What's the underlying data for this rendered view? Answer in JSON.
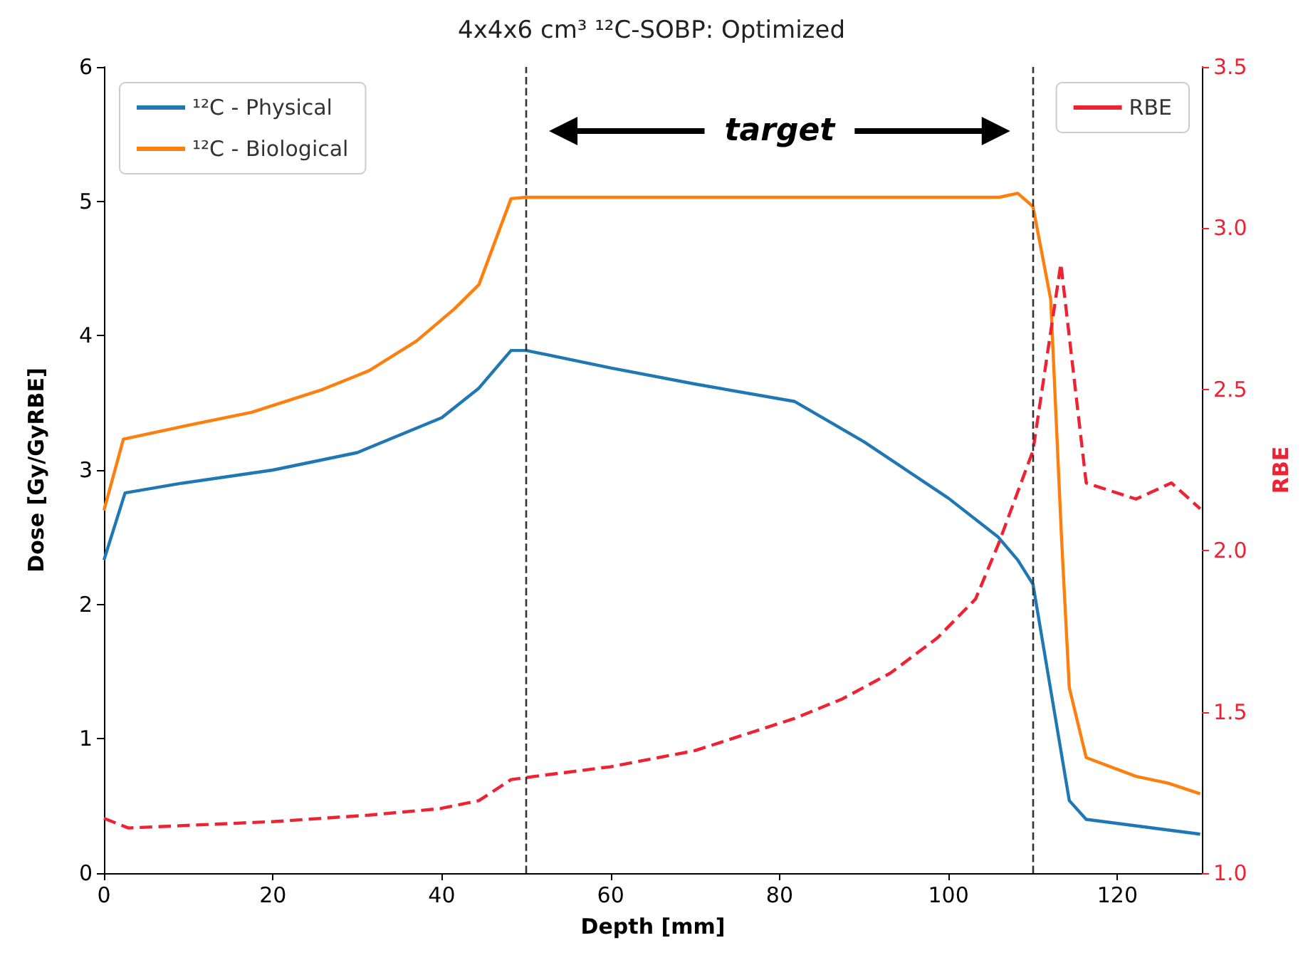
{
  "chart_data": {
    "type": "line",
    "title": "4x4x6 cm³ ¹²C-SOBP: Optimized",
    "xlabel": "Depth [mm]",
    "ylabel": "Dose [Gy/GyRBE]",
    "y2label": "RBE",
    "xlim": [
      0,
      130
    ],
    "xticks": [
      0,
      20,
      40,
      60,
      80,
      100,
      120
    ],
    "ylim": [
      0,
      6
    ],
    "yticks": [
      0,
      1,
      2,
      3,
      4,
      5,
      6
    ],
    "y2lim": [
      1,
      3.5
    ],
    "y2ticks": [
      {
        "value": 1,
        "label": "1.0"
      },
      {
        "value": 1.5,
        "label": "1.5"
      },
      {
        "value": 2,
        "label": "2.0"
      },
      {
        "value": 2.5,
        "label": "2.5"
      },
      {
        "value": 3,
        "label": "3.0"
      },
      {
        "value": 3.5,
        "label": "3.5"
      }
    ],
    "grid": false,
    "legend": "top left",
    "marker": "none",
    "ref_lines": [
      {
        "axis": "x",
        "value": 50,
        "line_style": "dashed",
        "color": "#333333"
      },
      {
        "axis": "x",
        "value": 110,
        "line_style": "dashed",
        "color": "#333333"
      }
    ],
    "annotations": [
      "target"
    ],
    "series": [
      {
        "name": "¹²C - Physical",
        "color": "#1f77b4",
        "line_style": "solid",
        "x": [
          0,
          2.5,
          9,
          20,
          30,
          40,
          44.4,
          48.2,
          50,
          60,
          70,
          81.8,
          90,
          100,
          105.9,
          108.2,
          110,
          114.3,
          116.3,
          129.8
        ],
        "values": [
          2.33,
          2.83,
          2.9,
          3.0,
          3.13,
          3.39,
          3.61,
          3.89,
          3.89,
          3.76,
          3.64,
          3.51,
          3.21,
          2.79,
          2.5,
          2.33,
          2.15,
          0.54,
          0.4,
          0.29
        ]
      },
      {
        "name": "¹²C - Biological",
        "color": "#ff7f0e",
        "line_style": "solid",
        "x": [
          0,
          2.3,
          9,
          17.5,
          25.9,
          31.4,
          37,
          41.5,
          44.4,
          48.2,
          50,
          70,
          90,
          106,
          108.2,
          110,
          112.1,
          113.4,
          114.3,
          116.3,
          122.2,
          126,
          129.8
        ],
        "values": [
          2.7,
          3.23,
          3.32,
          3.43,
          3.6,
          3.74,
          3.96,
          4.2,
          4.38,
          5.02,
          5.03,
          5.03,
          5.03,
          5.03,
          5.06,
          4.96,
          4.27,
          2.47,
          1.38,
          0.86,
          0.72,
          0.67,
          0.59
        ]
      },
      {
        "name": "RBE",
        "color": "#ee2233",
        "axis": "y2",
        "line_style": "dashed",
        "x": [
          0,
          2.9,
          20.2,
          31.4,
          39.8,
          44.4,
          48.2,
          51,
          60,
          70,
          81.8,
          87.4,
          93.1,
          98.7,
          103.2,
          105.9,
          110,
          113.3,
          116.3,
          122.2,
          126.4,
          129.8
        ],
        "values": [
          1.17,
          1.14,
          1.16,
          1.18,
          1.2,
          1.225,
          1.29,
          1.3,
          1.33,
          1.38,
          1.48,
          1.54,
          1.62,
          1.73,
          1.85,
          2.02,
          2.31,
          2.89,
          2.21,
          2.16,
          2.21,
          2.13
        ]
      }
    ]
  }
}
